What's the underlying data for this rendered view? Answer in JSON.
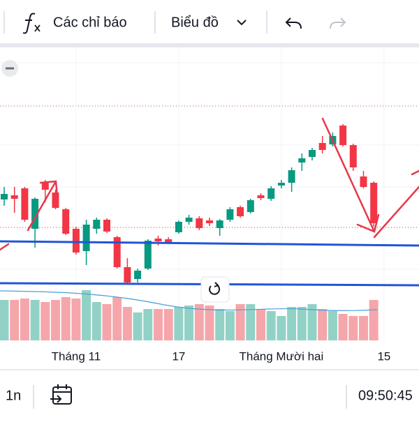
{
  "toolbar": {
    "indicators": "Các chỉ báo",
    "chart_type": "Biểu đồ"
  },
  "chart_data": {
    "type": "candlestick",
    "categories": [
      null,
      null,
      null,
      null,
      null,
      null,
      null,
      "Tháng 11",
      null,
      null,
      null,
      null,
      null,
      null,
      null,
      null,
      null,
      "17",
      null,
      null,
      null,
      null,
      null,
      null,
      null,
      null,
      null,
      "Tháng Mười hai",
      null,
      null,
      null,
      null,
      null,
      null,
      null,
      null,
      null,
      "15"
    ],
    "open": [
      134,
      140,
      150,
      92,
      158,
      144,
      120,
      92,
      60,
      92,
      105,
      80,
      37,
      20,
      35,
      78,
      77,
      87,
      102,
      107,
      104,
      93,
      105,
      123,
      116,
      140,
      135,
      154,
      158,
      187,
      195,
      215,
      213,
      240,
      212,
      167,
      158,
      null
    ],
    "high": [
      152,
      152,
      152,
      137,
      162,
      148,
      122,
      95,
      105,
      108,
      107,
      82,
      50,
      35,
      77,
      82,
      80,
      104,
      112,
      110,
      108,
      106,
      123,
      125,
      135,
      143,
      153,
      162,
      180,
      200,
      208,
      225,
      230,
      242,
      214,
      175,
      160,
      null
    ],
    "low": [
      125,
      115,
      102,
      65,
      130,
      120,
      83,
      55,
      40,
      85,
      86,
      35,
      12,
      15,
      33,
      68,
      70,
      85,
      98,
      90,
      96,
      82,
      102,
      108,
      114,
      133,
      132,
      150,
      145,
      175,
      190,
      200,
      210,
      210,
      175,
      150,
      95,
      null
    ],
    "close": [
      142,
      135,
      105,
      135,
      148,
      122,
      85,
      58,
      98,
      105,
      88,
      37,
      15,
      32,
      75,
      74,
      73,
      102,
      108,
      93,
      100,
      104,
      120,
      110,
      133,
      136,
      150,
      158,
      176,
      193,
      205,
      205,
      225,
      212,
      180,
      152,
      100,
      null
    ],
    "volume": [
      58,
      58,
      60,
      58,
      55,
      58,
      62,
      60,
      72,
      55,
      52,
      62,
      48,
      40,
      45,
      45,
      45,
      48,
      50,
      52,
      50,
      45,
      42,
      52,
      52,
      45,
      42,
      35,
      48,
      48,
      52,
      45,
      42,
      38,
      35,
      35,
      58,
      null
    ],
    "up_color": "#089981",
    "down_color": "#f23645",
    "volume_up_color": "#92d2c6",
    "volume_down_color": "#f5a6ab",
    "ylim": [
      0,
      330
    ],
    "volume_ylim": [
      0,
      75
    ]
  },
  "footer": {
    "interval": "1n",
    "time": "09:50:45"
  }
}
